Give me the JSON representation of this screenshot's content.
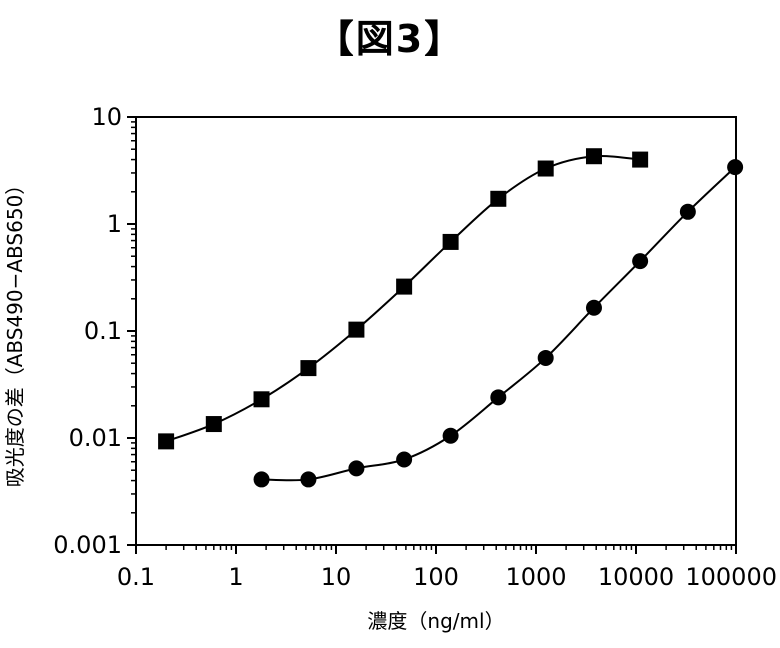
{
  "figure_title": "【図3】",
  "chart_data": {
    "type": "scatter",
    "title": "",
    "xlabel": "濃度（ng/ml）",
    "ylabel": "吸光度の差（ABS490−ABS650）",
    "xscale": "log",
    "yscale": "log",
    "xlim": [
      0.1,
      100000
    ],
    "ylim": [
      0.001,
      10
    ],
    "x_tick_labels": [
      "0.1",
      "1",
      "10",
      "100",
      "1000",
      "10000",
      "100000"
    ],
    "y_tick_labels": [
      "0.001",
      "0.01",
      "0.1",
      "1",
      "10"
    ],
    "grid": false,
    "legend": "none",
    "series": [
      {
        "marker": "square",
        "points": [
          {
            "x": 0.2,
            "y": 0.0093
          },
          {
            "x": 0.6,
            "y": 0.0135
          },
          {
            "x": 1.8,
            "y": 0.023
          },
          {
            "x": 5.3,
            "y": 0.045
          },
          {
            "x": 16,
            "y": 0.103
          },
          {
            "x": 48,
            "y": 0.26
          },
          {
            "x": 140,
            "y": 0.68
          },
          {
            "x": 420,
            "y": 1.72
          },
          {
            "x": 1250,
            "y": 3.3
          },
          {
            "x": 3800,
            "y": 4.3
          },
          {
            "x": 11000,
            "y": 4.0
          }
        ]
      },
      {
        "marker": "circle",
        "points": [
          {
            "x": 1.8,
            "y": 0.0041
          },
          {
            "x": 5.3,
            "y": 0.0041
          },
          {
            "x": 16,
            "y": 0.0052
          },
          {
            "x": 48,
            "y": 0.0063
          },
          {
            "x": 140,
            "y": 0.0105
          },
          {
            "x": 420,
            "y": 0.024
          },
          {
            "x": 1250,
            "y": 0.056
          },
          {
            "x": 3800,
            "y": 0.165
          },
          {
            "x": 11000,
            "y": 0.45
          },
          {
            "x": 33000,
            "y": 1.3
          },
          {
            "x": 98000,
            "y": 3.4
          }
        ]
      }
    ]
  }
}
